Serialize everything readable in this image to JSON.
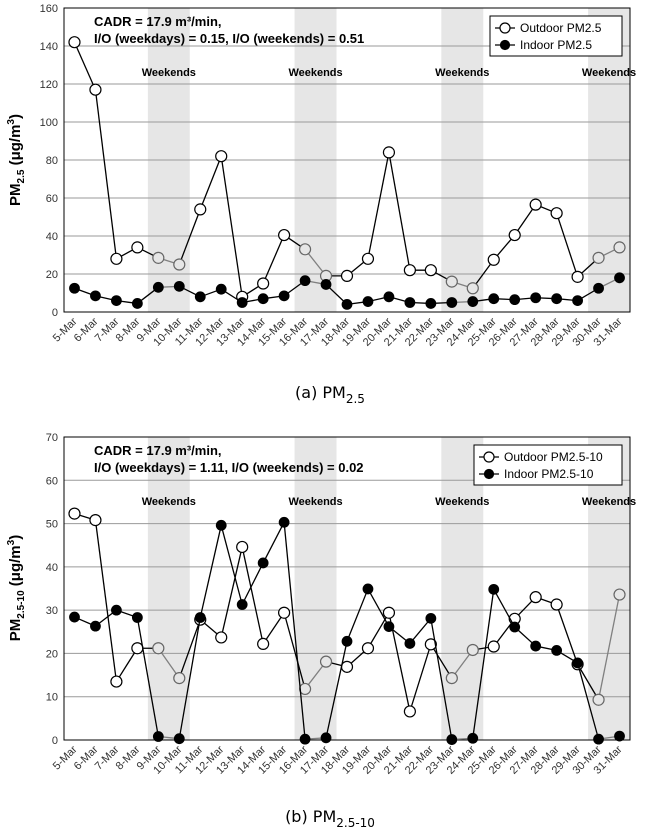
{
  "chart_data": [
    {
      "type": "line",
      "caption": "(a) PM",
      "caption_sub": "2.5",
      "ylabel": "PM",
      "ylabel_sub": "2.5",
      "ylabel_unit": " (μg/m",
      "ylabel_sup": "3",
      "ylabel_end": ")",
      "ylim": [
        0,
        160
      ],
      "yticks": [
        0,
        20,
        40,
        60,
        80,
        100,
        120,
        140,
        160
      ],
      "annotation": [
        "CADR = 17.9 m³/min,",
        "I/O (weekdays) = 0.15, I/O (weekends) = 0.51"
      ],
      "weekend_label": "Weekends",
      "weekend_ranges": [
        [
          4,
          5
        ],
        [
          11,
          12
        ],
        [
          18,
          19
        ],
        [
          25,
          26
        ]
      ],
      "categories": [
        "5-Mar",
        "6-Mar",
        "7-Mar",
        "8-Mar",
        "9-Mar",
        "10-Mar",
        "11-Mar",
        "12-Mar",
        "13-Mar",
        "14-Mar",
        "15-Mar",
        "16-Mar",
        "17-Mar",
        "18-Mar",
        "19-Mar",
        "20-Mar",
        "21-Mar",
        "22-Mar",
        "23-Mar",
        "24-Mar",
        "25-Mar",
        "26-Mar",
        "27-Mar",
        "28-Mar",
        "29-Mar",
        "30-Mar",
        "31-Mar"
      ],
      "series": [
        {
          "name": "Outdoor PM2.5",
          "marker": "open",
          "values": [
            142,
            117,
            28,
            34,
            28.5,
            25,
            54,
            82,
            8,
            15,
            40.5,
            33,
            19,
            19,
            28,
            84,
            22,
            22,
            16,
            12.5,
            27.5,
            40.5,
            56.5,
            52,
            18.5,
            28.5,
            34
          ]
        },
        {
          "name": "Indoor PM2.5",
          "marker": "filled",
          "values": [
            12.5,
            8.5,
            6,
            4.5,
            13,
            13.5,
            8,
            12,
            5,
            7,
            8.5,
            16.5,
            14.5,
            4,
            5.5,
            8,
            5,
            4.5,
            5,
            5.5,
            7,
            6.5,
            7.5,
            7,
            6,
            12.5,
            18
          ]
        }
      ],
      "legend_position": "top-right",
      "grid": "horizontal"
    },
    {
      "type": "line",
      "caption": "(b) PM",
      "caption_sub": "2.5-10",
      "ylabel": "PM",
      "ylabel_sub": "2.5-10",
      "ylabel_unit": " (μg/m",
      "ylabel_sup": "3",
      "ylabel_end": ")",
      "ylim": [
        0,
        70
      ],
      "yticks": [
        0,
        10,
        20,
        30,
        40,
        50,
        60,
        70
      ],
      "annotation": [
        "CADR = 17.9 m³/min,",
        "I/O (weekdays) = 1.11, I/O (weekends) = 0.02"
      ],
      "weekend_label": "Weekends",
      "weekend_ranges": [
        [
          4,
          5
        ],
        [
          11,
          12
        ],
        [
          18,
          19
        ],
        [
          25,
          26
        ]
      ],
      "categories": [
        "5-Mar",
        "6-Mar",
        "7-Mar",
        "8-Mar",
        "9-Mar",
        "10-Mar",
        "11-Mar",
        "12-Mar",
        "13-Mar",
        "14-Mar",
        "15-Mar",
        "16-Mar",
        "17-Mar",
        "18-Mar",
        "19-Mar",
        "20-Mar",
        "21-Mar",
        "22-Mar",
        "23-Mar",
        "24-Mar",
        "25-Mar",
        "26-Mar",
        "27-Mar",
        "28-Mar",
        "29-Mar",
        "30-Mar",
        "31-Mar"
      ],
      "series": [
        {
          "name": "Outdoor PM2.5-10",
          "marker": "open",
          "values": [
            52.3,
            50.8,
            13.5,
            21.2,
            21.2,
            14.3,
            27.8,
            23.7,
            44.6,
            22.2,
            29.4,
            11.8,
            18.1,
            16.9,
            21.2,
            29.4,
            6.6,
            22.1,
            14.3,
            20.8,
            21.6,
            28,
            33,
            31.3,
            17.5,
            9.3,
            33.6
          ]
        },
        {
          "name": "Indoor PM2.5-10",
          "marker": "filled",
          "values": [
            28.4,
            26.3,
            30,
            28.3,
            0.8,
            0.3,
            28.3,
            49.6,
            31.3,
            40.9,
            50.3,
            0.2,
            0.5,
            22.8,
            34.9,
            26.2,
            22.3,
            28.1,
            0.1,
            0.4,
            34.8,
            26.1,
            21.7,
            20.7,
            17.8,
            0.2,
            0.9
          ]
        }
      ],
      "legend_position": "top-right",
      "grid": "horizontal"
    }
  ],
  "colors": {
    "weekend_shade": "#e6e6e6",
    "grid": "#9a9a9a",
    "line": "#000000",
    "line_weekend": "#808080",
    "marker_open": "#ffffff",
    "marker_open_weekend": "#e6e6e6",
    "marker_filled": "#000000"
  }
}
